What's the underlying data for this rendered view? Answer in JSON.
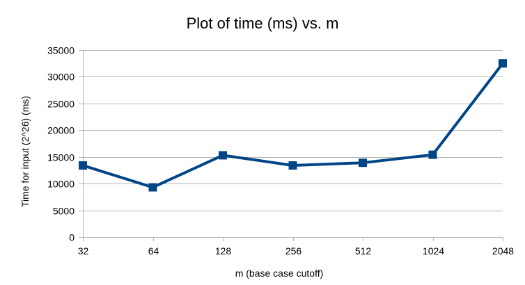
{
  "chart_data": {
    "type": "line",
    "title": "Plot of time (ms) vs. m",
    "xlabel": "m (base case cutoff)",
    "ylabel": "Time for input (2^26) (ms)",
    "categories": [
      "32",
      "64",
      "128",
      "256",
      "512",
      "1024",
      "2048"
    ],
    "series": [
      {
        "values": [
          13400,
          9300,
          15300,
          13400,
          13900,
          15400,
          32500
        ]
      }
    ],
    "ylim": [
      0,
      35000
    ],
    "yticks": [
      0,
      5000,
      10000,
      15000,
      20000,
      25000,
      30000,
      35000
    ],
    "grid": true,
    "legend": "none",
    "colors": {
      "series": "#004586",
      "grid": "#b3b3b3",
      "axis": "#b3b3b3"
    }
  }
}
